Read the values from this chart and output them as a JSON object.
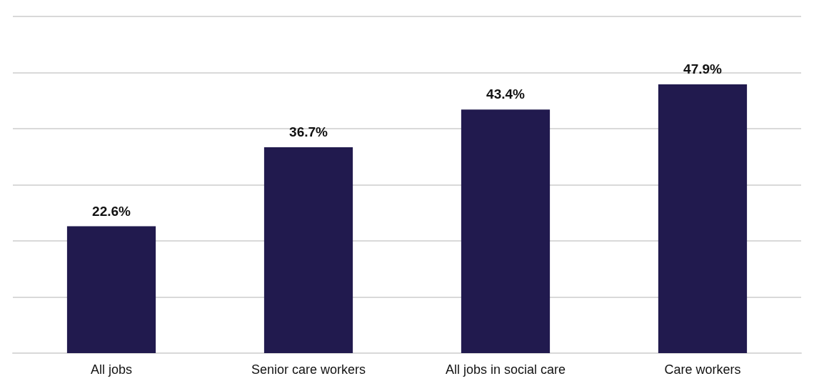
{
  "chart_data": {
    "type": "bar",
    "categories": [
      "All jobs",
      "Senior care workers",
      "All jobs in social care",
      "Care workers"
    ],
    "values": [
      22.6,
      36.7,
      43.4,
      47.9
    ],
    "value_labels": [
      "22.6%",
      "36.7%",
      "43.4%",
      "47.9%"
    ],
    "color": "#211a4e",
    "ylim": [
      0,
      60
    ],
    "yticks": [
      {
        "value": 0,
        "label": null
      },
      {
        "value": 10,
        "label": null
      },
      {
        "value": 20,
        "label": null
      },
      {
        "value": 30,
        "label": null
      },
      {
        "value": 40,
        "label": null
      },
      {
        "value": 50,
        "label": null
      },
      {
        "value": 60,
        "label": null
      }
    ],
    "grid": "y",
    "tick_labels": "x"
  }
}
